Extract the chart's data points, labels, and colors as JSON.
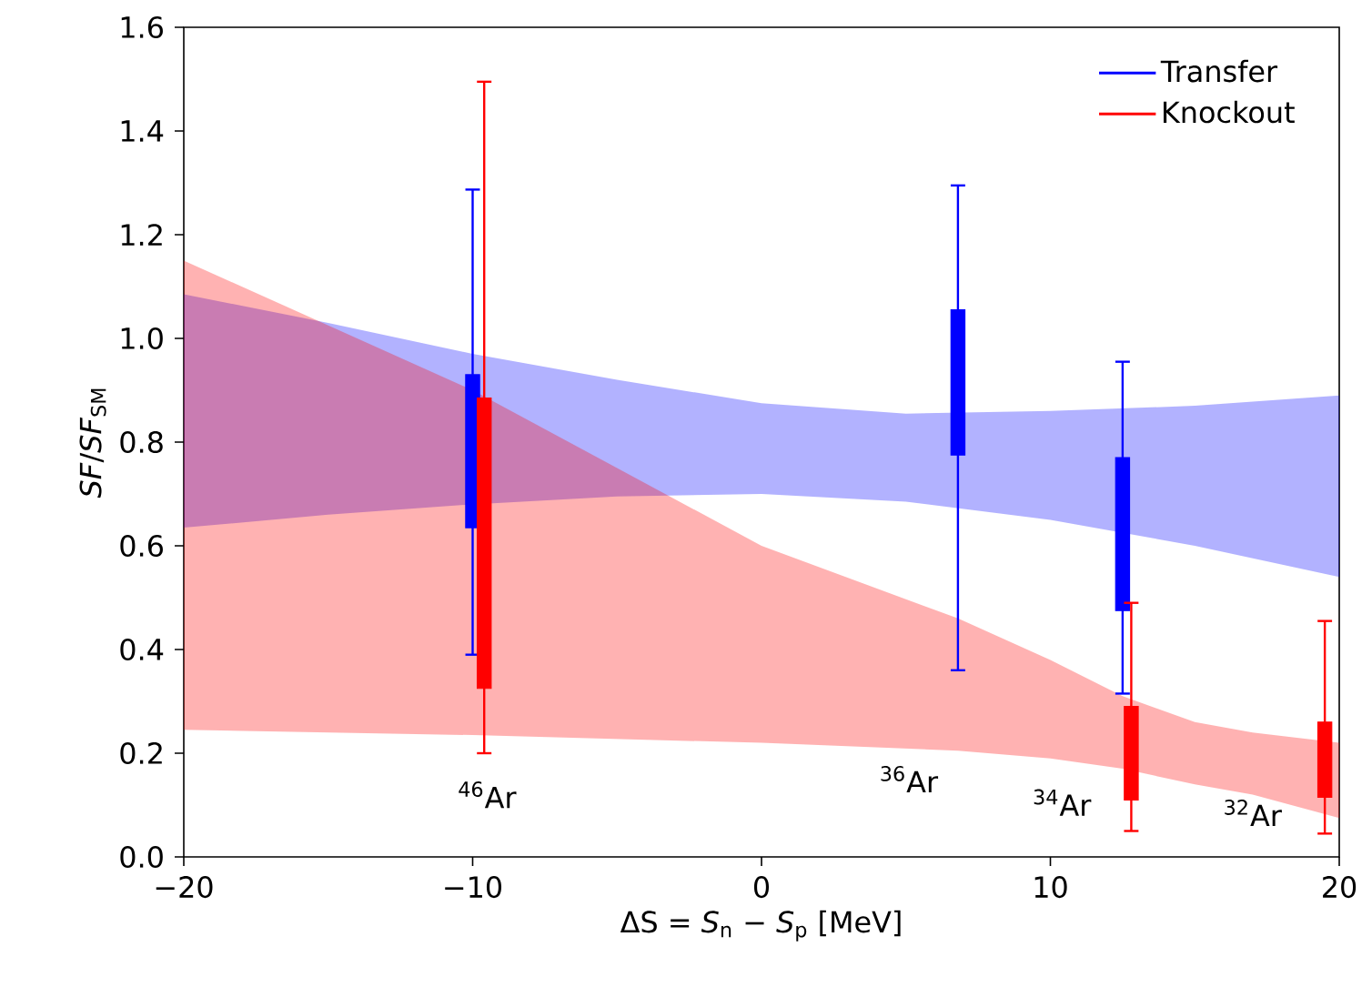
{
  "chart_data": {
    "type": "bar",
    "xlabel": "ΔS = *S*$_{n}$ − *S*$_{p}$ [MeV]",
    "ylabel": "*SF*/*SF*$_{SM}$",
    "xlim": [
      -20,
      20
    ],
    "xticks": [
      {
        "value": -20,
        "label": "−20"
      },
      {
        "value": -10,
        "label": "−10"
      },
      0,
      10,
      20
    ],
    "ylim": [
      0,
      1.6
    ],
    "yticks": [
      {
        "value": 0,
        "label": "0.0"
      },
      0.2,
      0.4,
      0.6,
      0.8,
      {
        "value": 1,
        "label": "1.0"
      },
      1.2,
      1.4,
      1.6
    ],
    "legend": "top right",
    "series": [
      {
        "type": "area",
        "color": "#0000ff",
        "x": [
          -20,
          -15,
          -10,
          -5,
          0,
          5,
          10,
          15,
          20
        ],
        "values": [
          null,
          null,
          null,
          null,
          null,
          null,
          null,
          null,
          null
        ],
        "lower": [
          0.635,
          0.66,
          0.68,
          0.695,
          0.7,
          0.685,
          0.65,
          0.6,
          0.54
        ],
        "upper": [
          1.085,
          1.03,
          0.97,
          0.92,
          0.875,
          0.855,
          0.86,
          0.87,
          0.89
        ]
      },
      {
        "type": "area",
        "color": "#ff0000",
        "x": [
          -20,
          -10,
          0,
          6.8,
          10,
          12.5,
          15,
          17,
          20
        ],
        "values": [
          null,
          null,
          null,
          null,
          null,
          null,
          null,
          null,
          null
        ],
        "lower": [
          0.245,
          0.235,
          0.22,
          0.205,
          0.19,
          0.17,
          0.14,
          0.12,
          0.075
        ],
        "upper": [
          1.15,
          0.9,
          0.6,
          0.46,
          0.38,
          0.31,
          0.26,
          0.24,
          0.22
        ]
      },
      {
        "name": "Transfer",
        "color": "#0000ff",
        "x": [
          -10,
          6.8,
          12.5
        ],
        "base": [
          0.635,
          0.775,
          0.475
        ],
        "values": [
          0.295,
          0.28,
          0.295
        ],
        "errors": [
          [
            0.39,
            1.287
          ],
          [
            0.36,
            1.295
          ],
          [
            0.315,
            0.955
          ]
        ]
      },
      {
        "name": "Knockout",
        "color": "#ff0000",
        "x": [
          -9.6,
          12.8,
          19.5
        ],
        "base": [
          0.325,
          0.11,
          0.115
        ],
        "values": [
          0.56,
          0.18,
          0.145
        ],
        "errors": [
          [
            0.2,
            1.495
          ],
          [
            0.05,
            0.49
          ],
          [
            0.045,
            0.455
          ]
        ]
      }
    ],
    "annotations": [
      "$^{46}$Ar",
      "$^{36}$Ar",
      "$^{34}$Ar",
      "$^{32}$Ar"
    ]
  }
}
